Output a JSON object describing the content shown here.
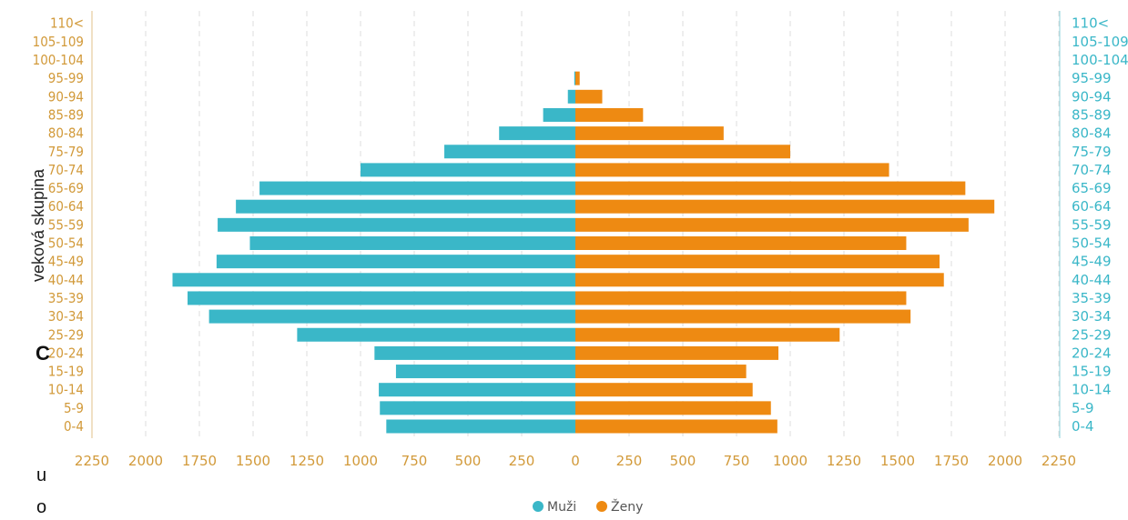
{
  "chart_data": {
    "type": "bar",
    "orientation": "horizontal",
    "categories": [
      "0-4",
      "5-9",
      "10-14",
      "15-19",
      "20-24",
      "25-29",
      "30-34",
      "35-39",
      "40-44",
      "45-49",
      "50-54",
      "55-59",
      "60-64",
      "65-69",
      "70-74",
      "75-79",
      "80-84",
      "85-89",
      "90-94",
      "95-99",
      "100-104",
      "105-109",
      "110<"
    ],
    "series": [
      {
        "name": "Muži",
        "color": "#3ab7c8",
        "values": [
          880,
          910,
          915,
          835,
          935,
          1295,
          1705,
          1805,
          1875,
          1670,
          1515,
          1665,
          1580,
          1470,
          1000,
          610,
          355,
          150,
          35,
          5,
          0,
          0,
          0
        ]
      },
      {
        "name": "Ženy",
        "color": "#ee8a12",
        "values": [
          940,
          910,
          825,
          795,
          945,
          1230,
          1560,
          1540,
          1715,
          1695,
          1540,
          1830,
          1950,
          1815,
          1460,
          1000,
          690,
          315,
          125,
          20,
          0,
          0,
          0
        ]
      }
    ],
    "xticks": [
      "2250",
      "2000",
      "1750",
      "1500",
      "1250",
      "1000",
      "750",
      "500",
      "250",
      "0",
      "250",
      "500",
      "750",
      "1000",
      "1250",
      "1500",
      "1750",
      "2000",
      "2250"
    ],
    "xlim": [
      -2250,
      2250
    ],
    "ylabel": "veková skupina",
    "grid": true,
    "legend": "bottom"
  },
  "side_letters": [
    "C",
    "u",
    "o"
  ]
}
